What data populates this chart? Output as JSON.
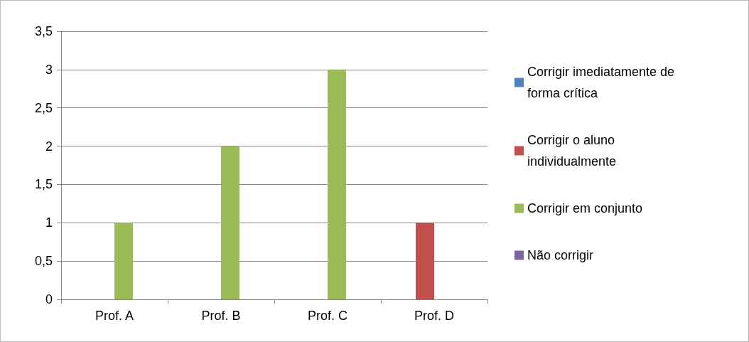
{
  "chart_data": {
    "type": "bar",
    "categories": [
      "Prof. A",
      "Prof. B",
      "Prof. C",
      "Prof. D"
    ],
    "series": [
      {
        "name": "Corrigir imediatamente de forma crítica",
        "color": "#4f81bd",
        "values": [
          0,
          0,
          0,
          0
        ]
      },
      {
        "name": "Corrigir o aluno individualmente",
        "color": "#c0504d",
        "values": [
          0,
          0,
          0,
          1
        ]
      },
      {
        "name": "Corrigir em conjunto",
        "color": "#9bbb59",
        "values": [
          1,
          2,
          3,
          0
        ]
      },
      {
        "name": "Não corrigir",
        "color": "#8064a2",
        "values": [
          0,
          0,
          0,
          0
        ]
      }
    ],
    "ylim": [
      0,
      3.5
    ],
    "yticks": [
      0,
      {
        "value": 0.5,
        "label": "0,5"
      },
      1,
      {
        "value": 1.5,
        "label": "1,5"
      },
      2,
      {
        "value": 2.5,
        "label": "2,5"
      },
      3,
      {
        "value": 3.5,
        "label": "3,5"
      }
    ],
    "grid": true,
    "legend": "right"
  }
}
